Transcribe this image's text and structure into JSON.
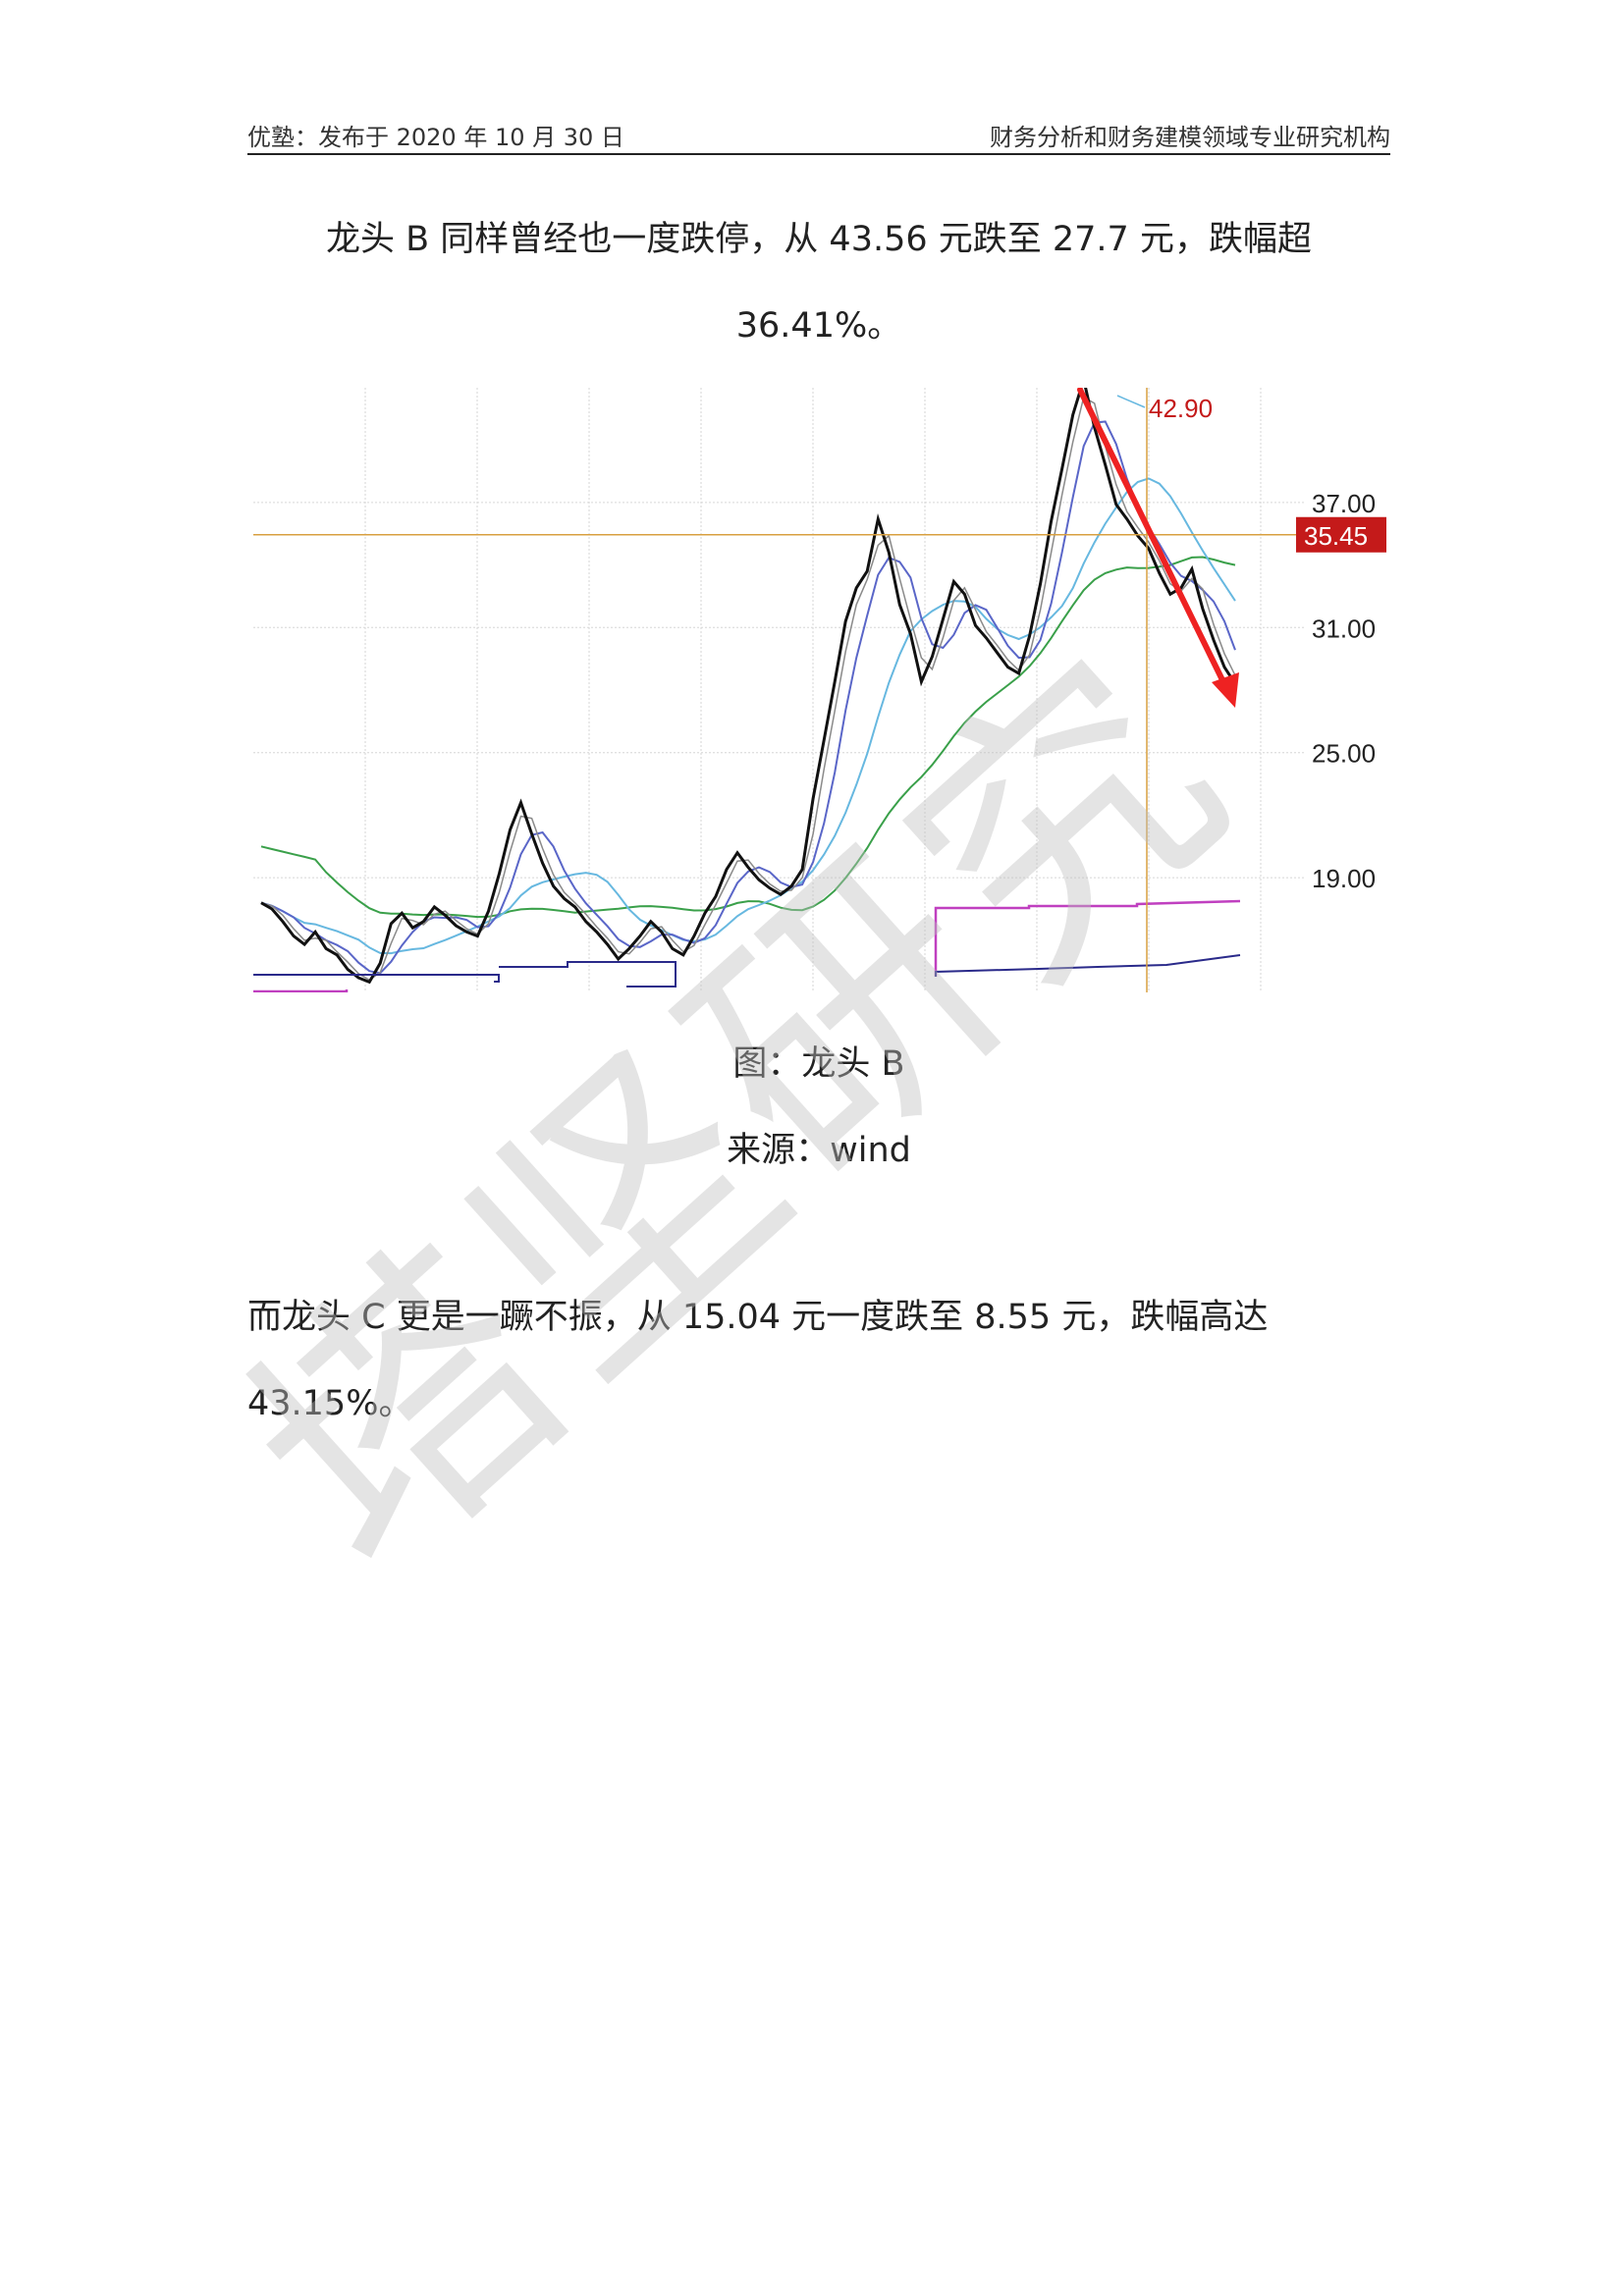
{
  "header": {
    "left": "优塾：发布于 2020 年 10 月 30 日",
    "right": "财务分析和财务建模领域专业研究机构"
  },
  "body": {
    "p1_line1": "龙头 B 同样曾经也一度跌停，从 43.56 元跌至 27.7 元，跌幅超",
    "p1_line2": "36.41%。",
    "caption": "图：龙头 B",
    "source": "来源：wind",
    "p2_line1": "而龙头 C 更是一蹶不振，从 15.04 元一度跌至 8.55 元，跌幅高达",
    "p2_line2": "43.15%。"
  },
  "watermark": "塔坚研究",
  "chart_data": {
    "type": "line",
    "y_ticks": [
      "37.00",
      "31.00",
      "25.00",
      "19.00"
    ],
    "ylim": [
      13.5,
      42.5
    ],
    "peak_label": "42.90",
    "current_price_label": "35.45",
    "current_price": 35.45,
    "colors": {
      "price": "#111111",
      "ma_short": "#5a66c8",
      "ma_mid": "#67b8e0",
      "ma_long": "#3aa04a",
      "indicator_purple": "#c040c0",
      "indicator_navy": "#2a2a8a",
      "crosshair": "#d8a040",
      "arrow": "#ee2222",
      "price_tag": "#c41a1a"
    },
    "series": [
      {
        "name": "",
        "values": [
          17.8,
          17.5,
          16.9,
          16.2,
          15.8,
          16.4,
          15.6,
          15.3,
          14.6,
          14.2,
          14.0,
          14.9,
          16.8,
          17.3,
          16.6,
          16.9,
          17.6,
          17.2,
          16.7,
          16.4,
          16.2,
          17.4,
          19.2,
          21.3,
          22.6,
          21.1,
          19.7,
          18.6,
          18.0,
          17.6,
          16.9,
          16.4,
          15.8,
          15.1,
          15.6,
          16.2,
          16.9,
          16.4,
          15.6,
          15.3,
          16.2,
          17.3,
          18.1,
          19.4,
          20.2,
          19.5,
          18.9,
          18.5,
          18.2,
          18.6,
          19.4,
          22.8,
          25.6,
          28.4,
          31.3,
          32.9,
          33.7,
          36.2,
          34.6,
          32.1,
          30.7,
          28.4,
          29.6,
          31.4,
          33.2,
          32.6,
          31.1,
          30.5,
          29.8,
          29.1,
          28.8,
          30.6,
          33.1,
          36.1,
          38.6,
          41.2,
          42.9,
          40.6,
          38.8,
          36.9,
          36.2,
          35.4,
          34.8,
          33.6,
          32.6,
          32.9,
          33.8,
          31.9,
          30.4,
          29.1,
          28.3
        ]
      }
    ]
  }
}
